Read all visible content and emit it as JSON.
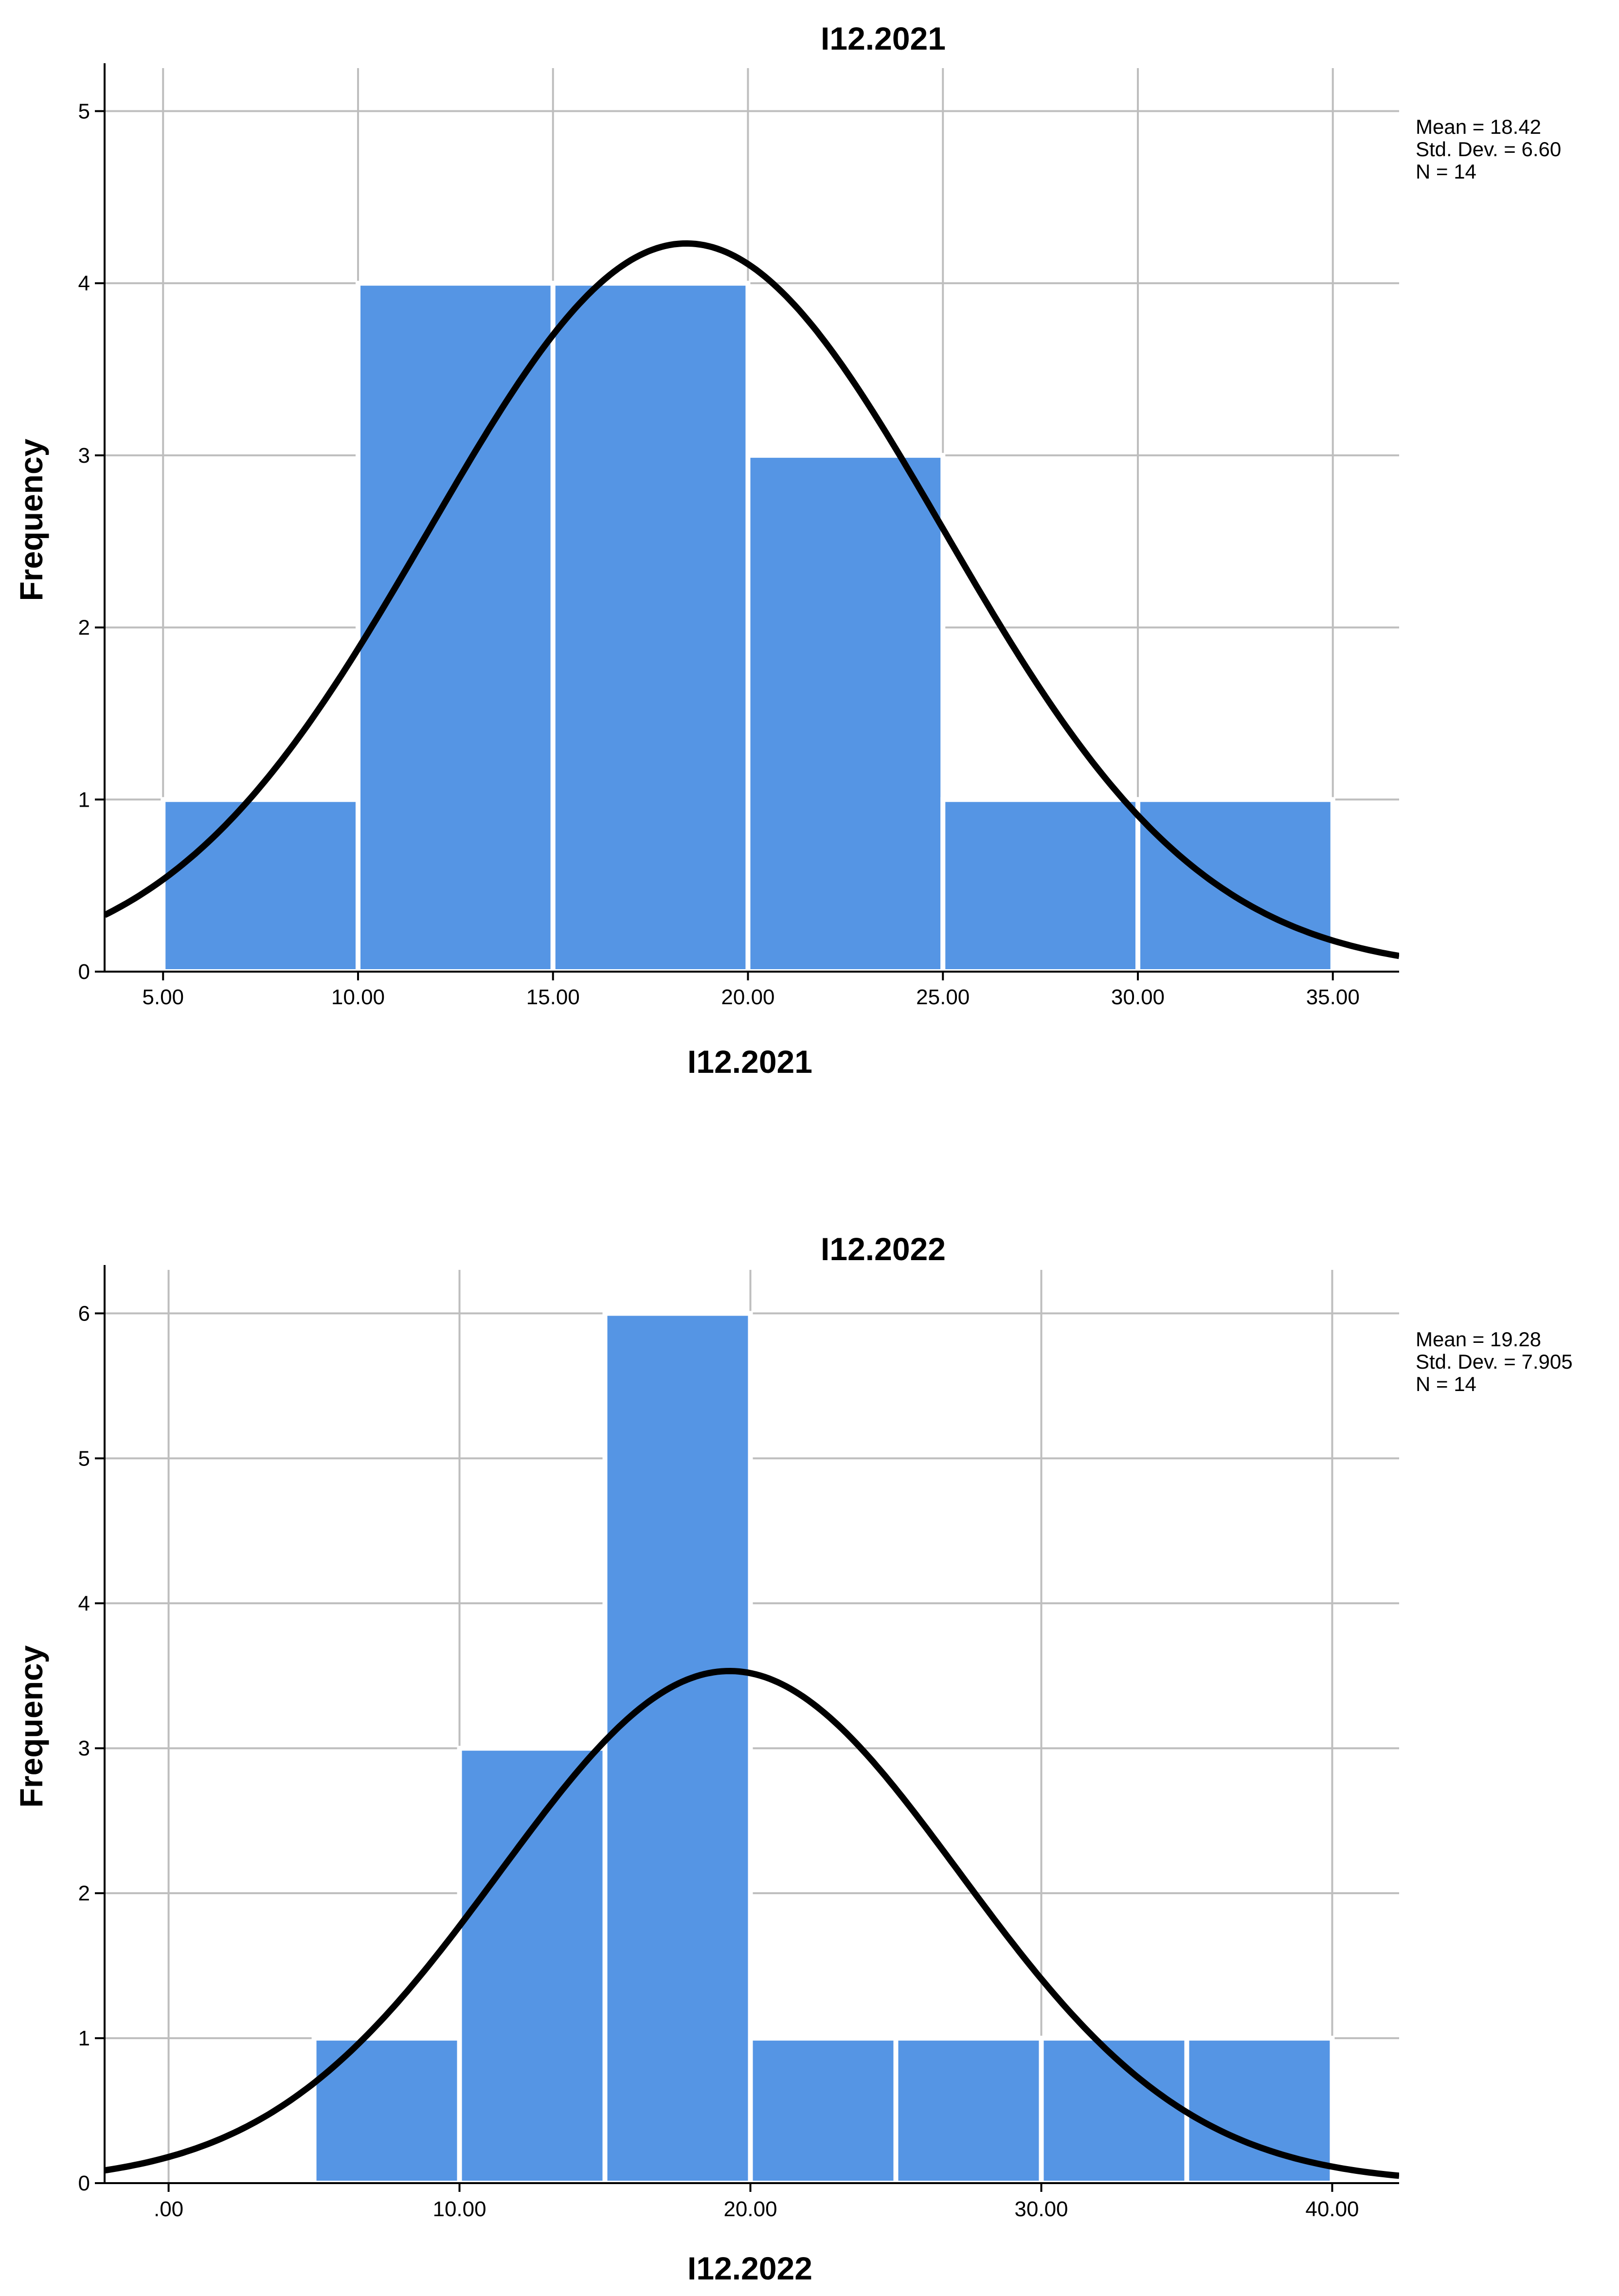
{
  "chart_data": [
    {
      "type": "bar",
      "subtype": "histogram",
      "title": "I12.2021",
      "xlabel": "I12.2021",
      "ylabel": "Frequency",
      "bins": [
        {
          "start": 5,
          "end": 10,
          "count": 1
        },
        {
          "start": 10,
          "end": 15,
          "count": 4
        },
        {
          "start": 15,
          "end": 20,
          "count": 4
        },
        {
          "start": 20,
          "end": 25,
          "count": 3
        },
        {
          "start": 25,
          "end": 30,
          "count": 1
        },
        {
          "start": 30,
          "end": 35,
          "count": 1
        }
      ],
      "xlim": [
        3.5,
        36.7
      ],
      "ylim": [
        0,
        5.25
      ],
      "xticks": [
        5,
        10,
        15,
        20,
        25,
        30,
        35
      ],
      "xtick_labels": [
        "5.00",
        "10.00",
        "15.00",
        "20.00",
        "25.00",
        "30.00",
        "35.00"
      ],
      "yticks": [
        0,
        1,
        2,
        3,
        4,
        5
      ],
      "ytick_labels": [
        "0",
        "1",
        "2",
        "3",
        "4",
        "5"
      ],
      "normal_curve": {
        "mean": 18.42,
        "sd": 6.6,
        "n": 14,
        "bin_width": 5
      },
      "stats": [
        "Mean = 18.42",
        "Std. Dev. = 6.60",
        "N = 14"
      ],
      "grid": true
    },
    {
      "type": "bar",
      "subtype": "histogram",
      "title": "I12.2022",
      "xlabel": "I12.2022",
      "ylabel": "Frequency",
      "bins": [
        {
          "start": 5,
          "end": 10,
          "count": 1
        },
        {
          "start": 10,
          "end": 15,
          "count": 3
        },
        {
          "start": 15,
          "end": 20,
          "count": 6
        },
        {
          "start": 20,
          "end": 25,
          "count": 1
        },
        {
          "start": 25,
          "end": 30,
          "count": 1
        },
        {
          "start": 30,
          "end": 35,
          "count": 1
        },
        {
          "start": 35,
          "end": 40,
          "count": 1
        }
      ],
      "xlim": [
        -2.2,
        42.3
      ],
      "ylim": [
        0,
        6.3
      ],
      "xticks": [
        0,
        10,
        20,
        30,
        40
      ],
      "xtick_labels": [
        ".00",
        "10.00",
        "20.00",
        "30.00",
        "40.00"
      ],
      "yticks": [
        0,
        1,
        2,
        3,
        4,
        5,
        6
      ],
      "ytick_labels": [
        "0",
        "1",
        "2",
        "3",
        "4",
        "5",
        "6"
      ],
      "normal_curve": {
        "mean": 19.28,
        "sd": 7.905,
        "n": 14,
        "bin_width": 5
      },
      "stats": [
        "Mean = 19.28",
        "Std. Dev. = 7.905",
        "N = 14"
      ],
      "grid": true
    }
  ],
  "colors": {
    "bar": "#5595E4",
    "bar_edge": "#FFFFFF",
    "grid": "#BEBEBE",
    "axis": "#000000",
    "curve": "#000000"
  }
}
